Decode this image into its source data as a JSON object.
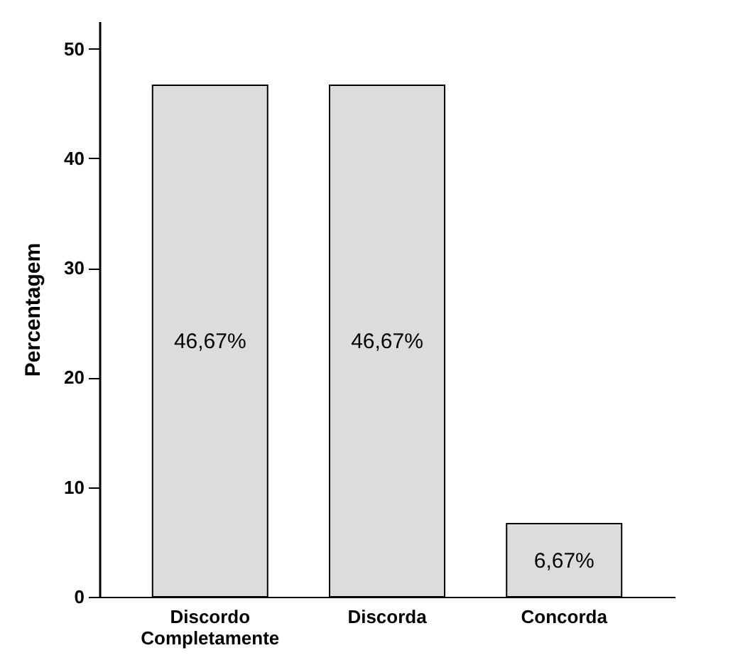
{
  "chart_data": {
    "type": "bar",
    "ylabel": "Percentagem",
    "categories": [
      "Discordo Completamente",
      "Discorda",
      "Concorda"
    ],
    "values": [
      46.67,
      46.67,
      6.67
    ],
    "value_labels": [
      "46,67%",
      "46,67%",
      "6,67%"
    ],
    "color": "#dcdcdc",
    "ylim": [
      0,
      52.5
    ],
    "yticks": [
      0,
      10,
      20,
      30,
      40,
      50
    ],
    "grid": false
  }
}
